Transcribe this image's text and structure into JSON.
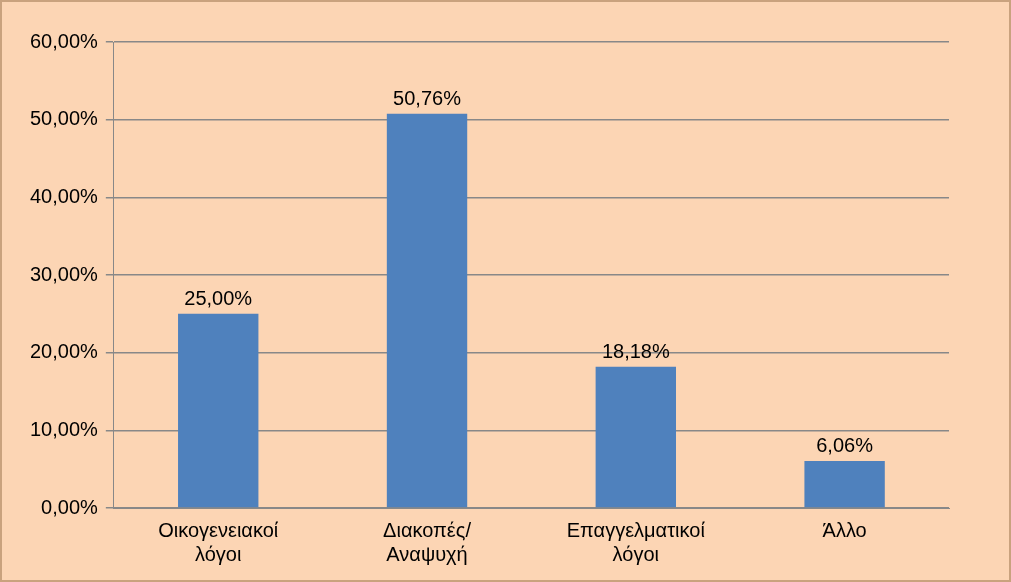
{
  "chart_data": {
    "type": "bar",
    "categories": [
      "Οικογενειακοί λόγοι",
      "Διακοπές/ Αναψυχή",
      "Επαγγελματικοί λόγοι",
      "Άλλο"
    ],
    "values": [
      25,
      50.76,
      18.18,
      6.06
    ],
    "value_labels": [
      "25,00%",
      "50,76%",
      "18,18%",
      "6,06%"
    ],
    "color": "#4f81bd",
    "ylim": [
      0,
      60
    ],
    "yticks": [
      {
        "value": 0,
        "label": "0,00%"
      },
      {
        "value": 10,
        "label": "10,00%"
      },
      {
        "value": 20,
        "label": "20,00%"
      },
      {
        "value": 30,
        "label": "30,00%"
      },
      {
        "value": 40,
        "label": "40,00%"
      },
      {
        "value": 50,
        "label": "50,00%"
      },
      {
        "value": 60,
        "label": "60,00%"
      }
    ],
    "grid": "y",
    "legend": false
  }
}
